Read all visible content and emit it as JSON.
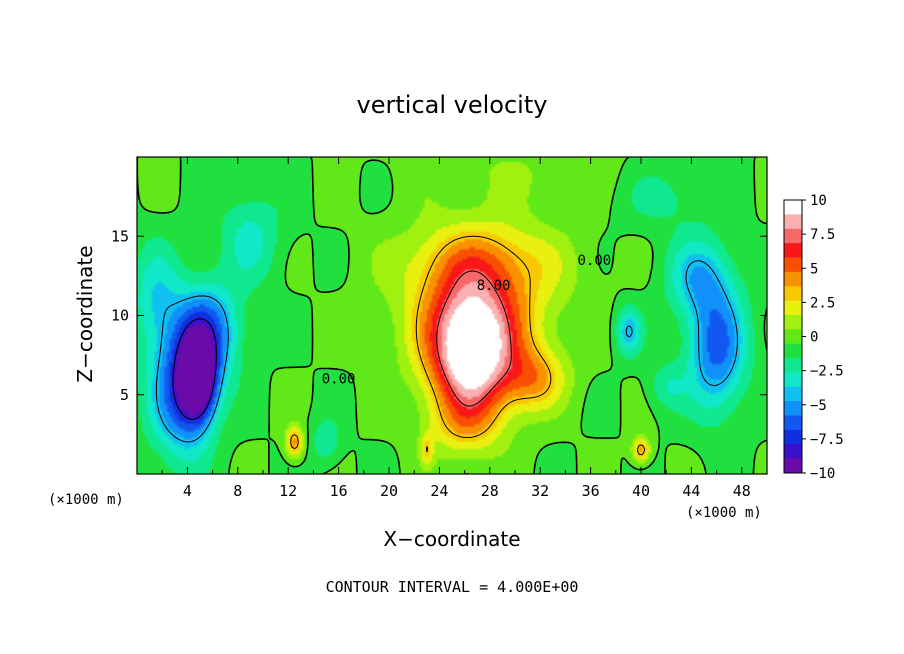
{
  "chart_data": {
    "type": "heatmap",
    "title": "vertical velocity",
    "xlabel": "X−coordinate",
    "ylabel": "Z−coordinate",
    "x_unit_left": "(×1000 m)",
    "x_unit_right": "(×1000 m)",
    "xlim": [
      0,
      50
    ],
    "ylim": [
      0,
      20
    ],
    "x_ticks": [
      4,
      8,
      12,
      16,
      20,
      24,
      28,
      32,
      36,
      40,
      44,
      48
    ],
    "y_ticks": [
      5,
      10,
      15
    ],
    "contour_interval_text": "CONTOUR INTERVAL = 4.000E+00",
    "contour_labels": [
      {
        "text": "8.00",
        "x": 28.3,
        "z": 11.6
      },
      {
        "text": "0.00",
        "x": 36.3,
        "z": 13.2
      },
      {
        "text": "0.00",
        "x": 16.0,
        "z": 5.7
      }
    ],
    "colorbar": {
      "min": -10,
      "max": 10,
      "tick_values": [
        10,
        7.5,
        5,
        2.5,
        0,
        -2.5,
        -5,
        -7.5,
        -10
      ],
      "tick_labels": [
        "10",
        "7.5",
        "5",
        "2.5",
        "0",
        "−2.5",
        "−5",
        "−7.5",
        "−10"
      ],
      "colors": [
        "#6a0aa8",
        "#3a10c8",
        "#1030e0",
        "#1058f0",
        "#1090f8",
        "#10c0f0",
        "#10e8c8",
        "#10e890",
        "#20e040",
        "#60e818",
        "#a0f010",
        "#e8f010",
        "#f8c800",
        "#f89000",
        "#f85000",
        "#f81818",
        "#f86868",
        "#f8b0b0",
        "#ffffff"
      ]
    },
    "features": [
      {
        "x": 26.5,
        "z": 7.5,
        "value": 10.5,
        "sx": 3.2,
        "sz": 3.8
      },
      {
        "x": 27.0,
        "z": 10.5,
        "value": 5.0,
        "sx": 5.5,
        "sz": 4.5
      },
      {
        "x": 31.5,
        "z": 6.0,
        "value": 4.0,
        "sx": 2.5,
        "sz": 2.0
      },
      {
        "x": 27.5,
        "z": 13.5,
        "value": 2.5,
        "sx": 6.5,
        "sz": 2.5
      },
      {
        "x": 26.0,
        "z": 3.0,
        "value": 2.5,
        "sx": 3.0,
        "sz": 2.0
      },
      {
        "x": 4.8,
        "z": 6.0,
        "value": -11.0,
        "sx": 1.4,
        "sz": 2.5
      },
      {
        "x": 5.5,
        "z": 9.0,
        "value": -6.0,
        "sx": 2.5,
        "sz": 3.0
      },
      {
        "x": 3.5,
        "z": 5.0,
        "value": -6.0,
        "sx": 2.5,
        "sz": 4.0
      },
      {
        "x": 1.5,
        "z": 11.0,
        "value": -3.0,
        "sx": 2.0,
        "sz": 3.5
      },
      {
        "x": 46.0,
        "z": 8.0,
        "value": -6.0,
        "sx": 2.3,
        "sz": 4.0
      },
      {
        "x": 44.5,
        "z": 12.5,
        "value": -3.5,
        "sx": 2.5,
        "sz": 2.5
      },
      {
        "x": 39.0,
        "z": 9.0,
        "value": -4.0,
        "sx": 1.0,
        "sz": 1.5
      },
      {
        "x": 42.0,
        "z": 5.5,
        "value": -2.0,
        "sx": 1.5,
        "sz": 1.5
      },
      {
        "x": 12.5,
        "z": 2.0,
        "value": 5.0,
        "sx": 0.7,
        "sz": 1.0
      },
      {
        "x": 40.0,
        "z": 1.5,
        "value": 5.0,
        "sx": 0.7,
        "sz": 0.8
      },
      {
        "x": 23.0,
        "z": 1.5,
        "value": 3.0,
        "sx": 0.5,
        "sz": 1.0
      },
      {
        "x": 15.0,
        "z": 2.0,
        "value": -2.0,
        "sx": 1.2,
        "sz": 1.5
      },
      {
        "x": 9.0,
        "z": 15.0,
        "value": -2.5,
        "sx": 2.5,
        "sz": 3.0
      },
      {
        "x": 42.0,
        "z": 17.5,
        "value": -1.5,
        "sx": 4.0,
        "sz": 2.0
      },
      {
        "x": 30.0,
        "z": 19.0,
        "value": 1.0,
        "sx": 8.0,
        "sz": 2.0
      }
    ]
  }
}
